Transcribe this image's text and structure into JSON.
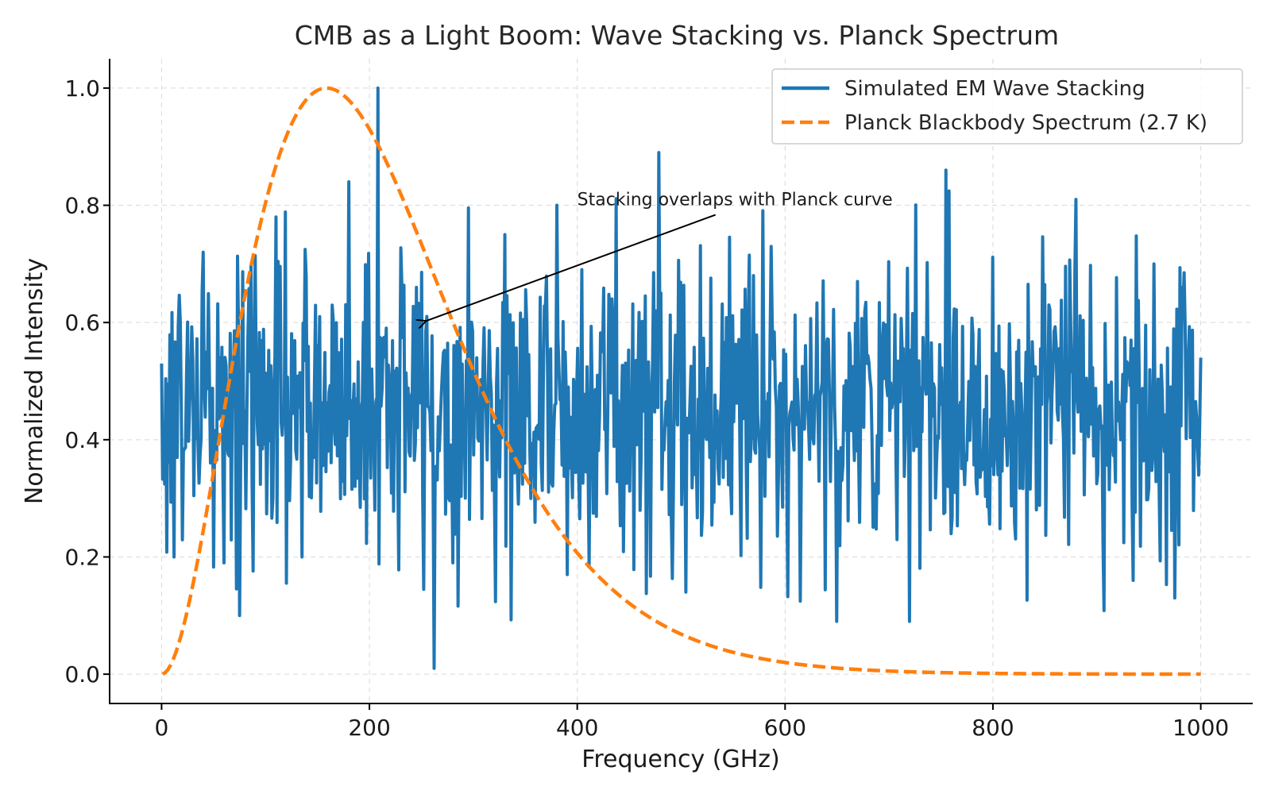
{
  "chart_data": {
    "type": "line",
    "title": "CMB as a Light Boom: Wave Stacking vs. Planck Spectrum",
    "xlabel": "Frequency (GHz)",
    "ylabel": "Normalized Intensity",
    "xlim": [
      -50,
      1050
    ],
    "ylim": [
      -0.05,
      1.05
    ],
    "xticks": [
      0,
      200,
      400,
      600,
      800,
      1000
    ],
    "yticks": [
      0.0,
      0.2,
      0.4,
      0.6,
      0.8,
      1.0
    ],
    "xtick_labels": [
      "0",
      "200",
      "400",
      "600",
      "800",
      "1000"
    ],
    "ytick_labels": [
      "0.0",
      "0.2",
      "0.4",
      "0.6",
      "0.8",
      "1.0"
    ],
    "grid": true,
    "legend_position": "top-right",
    "series": [
      {
        "name": "Simulated EM Wave Stacking",
        "color": "#1f77b4",
        "style": "solid",
        "generator": "noise",
        "x_start": 0,
        "x_end": 1000,
        "points": 1000,
        "mean": 0.46,
        "spread": 0.13,
        "min": 0.01,
        "max": 1.0,
        "x": [
          0,
          12,
          40,
          60,
          75,
          110,
          135,
          180,
          208,
          245,
          262,
          280,
          330,
          380,
          390,
          478,
          505,
          650,
          670,
          720,
          755,
          880,
          935,
          955,
          975,
          1000
        ],
        "y": [
          0.53,
          0.2,
          0.72,
          0.19,
          0.1,
          0.78,
          0.2,
          0.84,
          1.0,
          0.66,
          0.01,
          0.19,
          0.75,
          0.8,
          0.17,
          0.89,
          0.14,
          0.09,
          0.67,
          0.09,
          0.86,
          0.81,
          0.16,
          0.7,
          0.13,
          0.54
        ]
      },
      {
        "name": "Planck Blackbody Spectrum (2.7 K)",
        "color": "#ff7f0e",
        "style": "dashed",
        "generator": "planck",
        "temperature_K": 2.7,
        "x_start": 1,
        "x_end": 1000,
        "points": 400,
        "peak_x": 159,
        "peak_y": 1.0
      }
    ],
    "annotations": [
      {
        "text": "Stacking overlaps with Planck curve",
        "text_x": 400,
        "text_y": 0.8,
        "arrow_to_x": 250,
        "arrow_to_y": 0.6
      }
    ]
  }
}
